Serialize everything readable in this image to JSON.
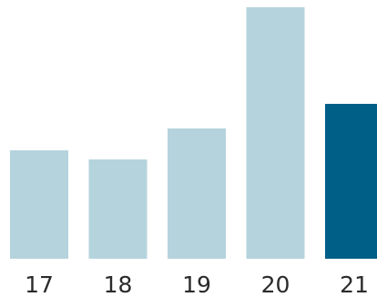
{
  "chart_data": {
    "type": "bar",
    "categories": [
      "17",
      "18",
      "19",
      "20",
      "21"
    ],
    "values": [
      119,
      109,
      143,
      276,
      170
    ],
    "ylim": [
      0,
      276
    ],
    "title": "",
    "xlabel": "",
    "ylabel": "",
    "grid": false,
    "colors": {
      "bar": "#b5d3dd",
      "highlight": "#005f86",
      "axis_text": "#2b2b2b"
    },
    "highlight_category": "21"
  }
}
